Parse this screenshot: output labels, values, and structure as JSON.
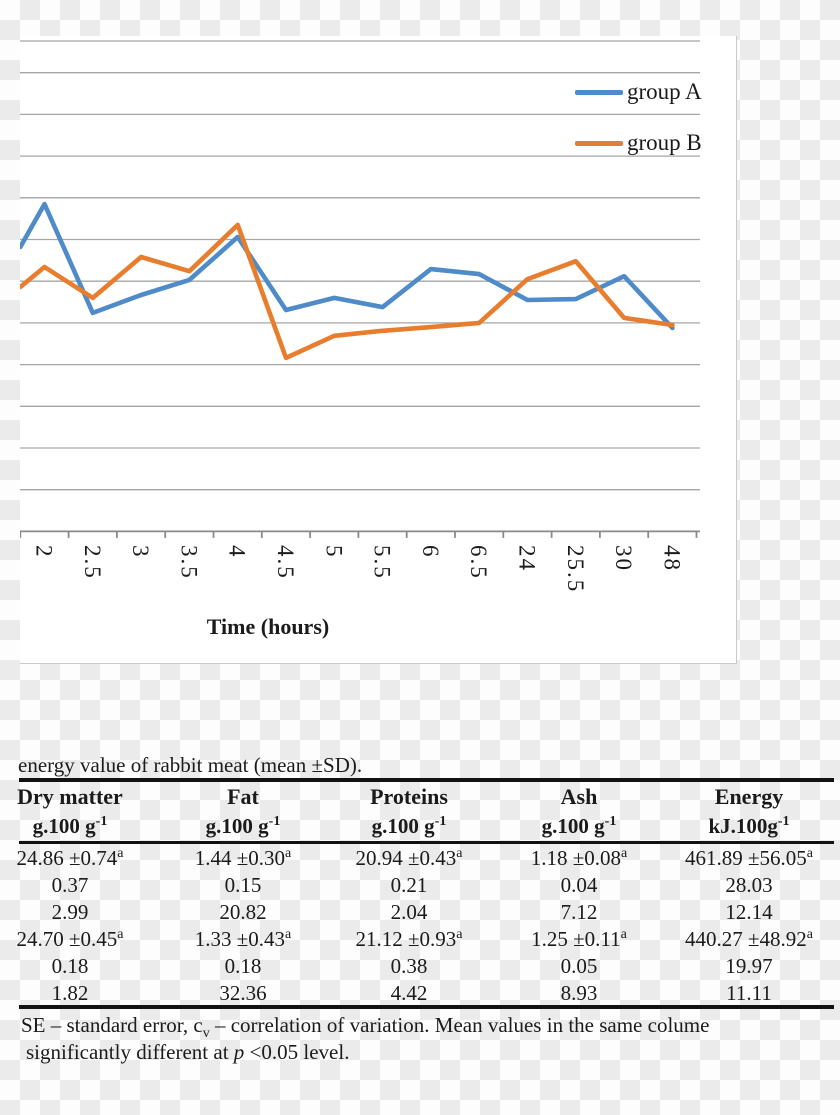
{
  "chart_data": {
    "type": "line",
    "title": "",
    "x_title": "Time (hours)",
    "categories": [
      "2",
      "2.5",
      "3",
      "3.5",
      "4",
      "4.5",
      "5",
      "5.5",
      "6",
      "6.5",
      "24",
      "25.5",
      "30",
      "48"
    ],
    "y_axis_note": "y-axis labels cropped out of image; values given in gridline units above the x-axis (1 unit = one gridline interval)",
    "ylim_gridline_units": [
      0,
      12
    ],
    "grid_on": true,
    "gridline_count": 12,
    "legend_position": "upper-right",
    "series": [
      {
        "name": "group A",
        "color": "#4E8BC8",
        "left_edge_clip_value": 6.82,
        "values": [
          7.85,
          5.24,
          5.67,
          6.03,
          7.06,
          5.31,
          5.6,
          5.38,
          6.29,
          6.17,
          5.55,
          5.57,
          6.12,
          4.88
        ]
      },
      {
        "name": "group B",
        "color": "#E87D2E",
        "left_edge_clip_value": 5.86,
        "values": [
          6.34,
          5.6,
          6.58,
          6.24,
          7.35,
          4.16,
          4.69,
          4.81,
          4.9,
          5.0,
          6.05,
          6.48,
          5.12,
          4.95
        ]
      }
    ]
  },
  "table": {
    "caption": "energy value of rabbit meat (mean ±SD).",
    "columns": [
      {
        "header": "Dry matter",
        "unit_base": "g.100 g",
        "unit_sup": "-1"
      },
      {
        "header": "Fat",
        "unit_base": "g.100 g",
        "unit_sup": "-1"
      },
      {
        "header": "Proteins",
        "unit_base": "g.100 g",
        "unit_sup": "-1"
      },
      {
        "header": "Ash",
        "unit_base": "g.100 g",
        "unit_sup": "-1"
      },
      {
        "header": "Energy",
        "unit_base": "kJ.100g",
        "unit_sup": "-1"
      }
    ],
    "rows": [
      [
        "24.86 ±0.74^a",
        "1.44 ±0.30^a",
        "20.94 ±0.43^a",
        "1.18 ±0.08^a",
        "461.89 ±56.05^a"
      ],
      [
        "0.37",
        "0.15",
        "0.21",
        "0.04",
        "28.03"
      ],
      [
        "2.99",
        "20.82",
        "2.04",
        "7.12",
        "12.14"
      ],
      [
        "24.70 ±0.45^a",
        "1.33 ±0.43^a",
        "21.12 ±0.93^a",
        "1.25 ±0.11^a",
        "440.27 ±48.92^a"
      ],
      [
        "0.18",
        "0.18",
        "0.38",
        "0.05",
        "19.97"
      ],
      [
        "1.82",
        "32.36",
        "4.42",
        "8.93",
        "11.11"
      ]
    ],
    "footnote_line1_pre": "SE – standard error, c",
    "footnote_line1_sub": "v",
    "footnote_line1_post": " – correlation of variation. Mean values in the same colume",
    "footnote_line2_pre": "significantly different at ",
    "footnote_line2_italic": "p",
    "footnote_line2_post": " <0.05 level."
  },
  "colors": {
    "series_a": "#4E8BC8",
    "series_b": "#E87D2E",
    "gridline": "#a6a6a6",
    "axis": "#8a8a8a",
    "rule_black": "#121212",
    "checker_light": "#fdfdfd",
    "checker_dark": "#ebebeb"
  }
}
